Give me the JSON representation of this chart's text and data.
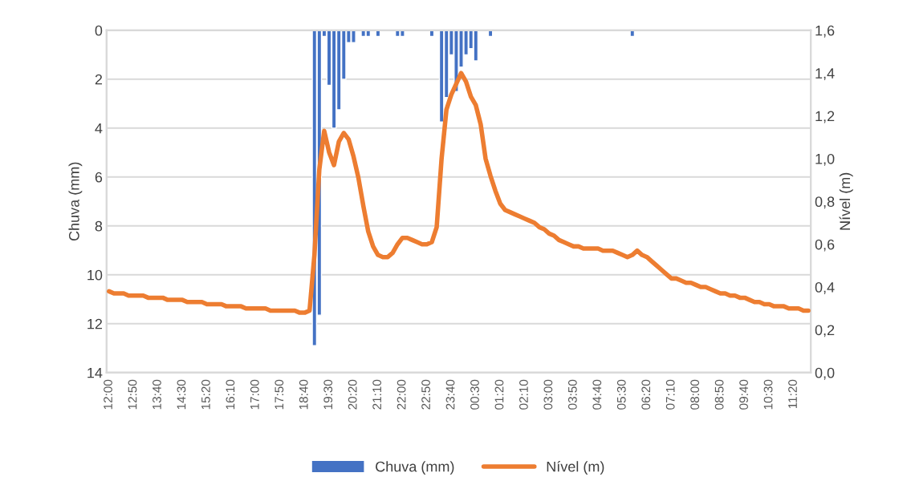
{
  "chart_data": {
    "type": "bar",
    "categories": [
      "12:00",
      null,
      null,
      null,
      null,
      "12:50",
      null,
      null,
      null,
      null,
      "13:40",
      null,
      null,
      null,
      null,
      "14:30",
      null,
      null,
      null,
      null,
      "15:20",
      null,
      null,
      null,
      null,
      "16:10",
      null,
      null,
      null,
      null,
      "17:00",
      null,
      null,
      null,
      null,
      "17:50",
      null,
      null,
      null,
      null,
      "18:40",
      null,
      null,
      null,
      null,
      "19:30",
      null,
      null,
      null,
      null,
      "20:20",
      null,
      null,
      null,
      null,
      "21:10",
      null,
      null,
      null,
      null,
      "22:00",
      null,
      null,
      null,
      null,
      "22:50",
      null,
      null,
      null,
      null,
      "23:40",
      null,
      null,
      null,
      null,
      "00:30",
      null,
      null,
      null,
      null,
      "01:20",
      null,
      null,
      null,
      null,
      "02:10",
      null,
      null,
      null,
      null,
      "03:00",
      null,
      null,
      null,
      null,
      "03:50",
      null,
      null,
      null,
      null,
      "04:40",
      null,
      null,
      null,
      null,
      "05:30",
      null,
      null,
      null,
      null,
      "06:20",
      null,
      null,
      null,
      null,
      "07:10",
      null,
      null,
      null,
      null,
      "08:00",
      null,
      null,
      null,
      null,
      "08:50",
      null,
      null,
      null,
      null,
      "09:40",
      null,
      null,
      null,
      null,
      "10:30",
      null,
      null,
      null,
      null,
      "11:20",
      null,
      null,
      null
    ],
    "series": [
      {
        "name": "Chuva (mm)",
        "color": "#4472c4",
        "values": [
          null,
          null,
          null,
          null,
          null,
          null,
          null,
          null,
          null,
          null,
          null,
          null,
          null,
          null,
          null,
          null,
          null,
          null,
          null,
          null,
          null,
          null,
          null,
          null,
          null,
          null,
          null,
          null,
          null,
          null,
          null,
          null,
          null,
          null,
          null,
          null,
          null,
          null,
          null,
          null,
          null,
          null,
          12.9,
          11.65,
          0.25,
          2.25,
          4,
          3.25,
          2,
          0.5,
          0.5,
          null,
          0.25,
          0.25,
          null,
          0.25,
          null,
          null,
          null,
          0.25,
          0.25,
          null,
          null,
          null,
          null,
          null,
          0.25,
          null,
          3.75,
          2.75,
          1,
          2.5,
          1.5,
          1,
          0.75,
          1.25,
          null,
          null,
          0.25,
          null,
          null,
          null,
          null,
          null,
          null,
          null,
          null,
          null,
          null,
          null,
          null,
          null,
          null,
          null,
          null,
          null,
          null,
          null,
          null,
          null,
          null,
          null,
          null,
          null,
          null,
          null,
          null,
          0.25,
          null,
          null,
          null,
          null,
          null,
          null,
          null,
          null,
          null,
          null,
          null,
          null,
          null,
          null,
          null,
          null,
          null,
          null,
          null,
          null,
          null,
          null,
          null,
          null,
          null,
          null,
          null,
          null,
          null,
          null,
          null,
          null,
          null,
          null,
          null,
          null
        ]
      },
      {
        "name": "Nível (m)",
        "type": "line",
        "axis": "y2",
        "color": "#ed7d31",
        "values": [
          0.38,
          0.37,
          0.37,
          0.37,
          0.36,
          0.36,
          0.36,
          0.36,
          0.35,
          0.35,
          0.35,
          0.35,
          0.34,
          0.34,
          0.34,
          0.34,
          0.33,
          0.33,
          0.33,
          0.33,
          0.32,
          0.32,
          0.32,
          0.32,
          0.31,
          0.31,
          0.31,
          0.31,
          0.3,
          0.3,
          0.3,
          0.3,
          0.3,
          0.29,
          0.29,
          0.29,
          0.29,
          0.29,
          0.29,
          0.28,
          0.28,
          0.29,
          0.55,
          0.95,
          1.13,
          1.03,
          0.97,
          1.08,
          1.12,
          1.09,
          1.01,
          0.91,
          0.78,
          0.66,
          0.59,
          0.55,
          0.54,
          0.54,
          0.56,
          0.6,
          0.63,
          0.63,
          0.62,
          0.61,
          0.6,
          0.6,
          0.61,
          0.68,
          1.0,
          1.23,
          1.3,
          1.35,
          1.4,
          1.36,
          1.29,
          1.25,
          1.16,
          1.0,
          0.92,
          0.85,
          0.79,
          0.76,
          0.75,
          0.74,
          0.73,
          0.72,
          0.71,
          0.7,
          0.68,
          0.67,
          0.65,
          0.64,
          0.62,
          0.61,
          0.6,
          0.59,
          0.59,
          0.58,
          0.58,
          0.58,
          0.58,
          0.57,
          0.57,
          0.57,
          0.56,
          0.55,
          0.54,
          0.55,
          0.57,
          0.55,
          0.54,
          0.52,
          0.5,
          0.48,
          0.46,
          0.44,
          0.44,
          0.43,
          0.42,
          0.42,
          0.41,
          0.4,
          0.4,
          0.39,
          0.38,
          0.37,
          0.37,
          0.36,
          0.36,
          0.35,
          0.35,
          0.34,
          0.33,
          0.33,
          0.32,
          0.32,
          0.31,
          0.31,
          0.31,
          0.3,
          0.3,
          0.3,
          0.29,
          0.29
        ]
      }
    ],
    "ylabel": "Chuva (mm)",
    "y2label": "Nível (m)",
    "ylim": [
      14,
      0
    ],
    "yticks": [
      0,
      2,
      4,
      6,
      8,
      10,
      12,
      14
    ],
    "y2lim": [
      0,
      1.6
    ],
    "y2ticks": [
      {
        "value": 0,
        "label": "0,0"
      },
      {
        "value": 0.2,
        "label": "0,2"
      },
      {
        "value": 0.4,
        "label": "0,4"
      },
      {
        "value": 0.6,
        "label": "0,6"
      },
      {
        "value": 0.8,
        "label": "0,8"
      },
      {
        "value": 1.0,
        "label": "1,0"
      },
      {
        "value": 1.2,
        "label": "1,2"
      },
      {
        "value": 1.4,
        "label": "1,4"
      },
      {
        "value": 1.6,
        "label": "1,6"
      }
    ],
    "grid": "y",
    "legend": "bottom"
  }
}
